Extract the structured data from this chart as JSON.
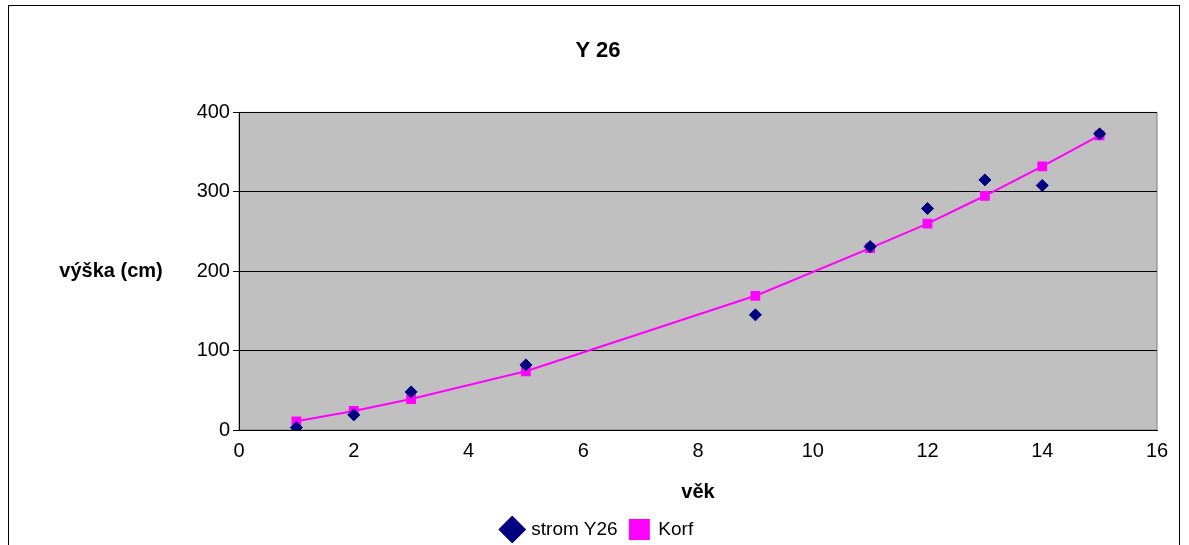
{
  "chart_data": {
    "type": "line",
    "title": "Y 26",
    "xlabel": "věk",
    "ylabel": "výška (cm)",
    "xlim": [
      0,
      16
    ],
    "xticks": [
      0,
      2,
      4,
      6,
      8,
      10,
      12,
      14,
      16
    ],
    "ylim": [
      0,
      400
    ],
    "yticks": [
      0,
      100,
      200,
      300,
      400
    ],
    "grid": "y",
    "legend": "bottom",
    "series": [
      {
        "name": "Korf",
        "type": "line",
        "color": "#ff00ff",
        "marker": "square",
        "line_style": "solid",
        "x": [
          1,
          2,
          3,
          5,
          9,
          11,
          12,
          13,
          14,
          15
        ],
        "values": [
          11,
          24,
          39,
          74,
          169,
          229,
          260,
          295,
          332,
          371
        ]
      },
      {
        "name": "strom Y26",
        "type": "scatter",
        "color": "#000080",
        "marker": "diamond",
        "x": [
          1,
          2,
          3,
          5,
          9,
          11,
          12,
          13,
          14,
          15
        ],
        "values": [
          3,
          19,
          48,
          82,
          145,
          231,
          279,
          315,
          308,
          373
        ]
      }
    ]
  }
}
